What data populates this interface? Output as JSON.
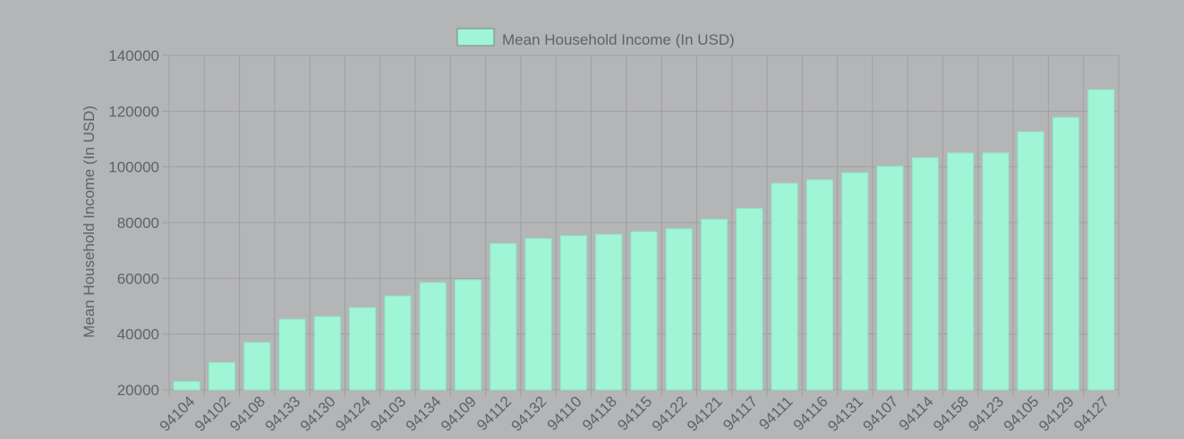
{
  "chart_data": {
    "type": "bar",
    "legend": {
      "label": "Mean Household Income (In USD)",
      "position": "top-center"
    },
    "ylabel": "Mean Household Income (In USD)",
    "xlabel": "",
    "ylim": [
      20000,
      140000
    ],
    "yticks": [
      20000,
      40000,
      60000,
      80000,
      100000,
      120000,
      140000
    ],
    "grid": true,
    "categories": [
      "94104",
      "94102",
      "94108",
      "94133",
      "94130",
      "94124",
      "94103",
      "94134",
      "94109",
      "94112",
      "94132",
      "94110",
      "94118",
      "94115",
      "94122",
      "94121",
      "94117",
      "94111",
      "94116",
      "94131",
      "94107",
      "94114",
      "94158",
      "94123",
      "94105",
      "94129",
      "94127"
    ],
    "series": [
      {
        "name": "Mean Household Income (In USD)",
        "values": [
          23000,
          29800,
          37000,
          45300,
          46300,
          49500,
          53700,
          58500,
          59500,
          72500,
          74300,
          75300,
          75800,
          76700,
          77800,
          81200,
          85100,
          94100,
          95400,
          97900,
          100200,
          103300,
          105000,
          105000,
          112600,
          117800,
          127700
        ]
      }
    ],
    "colors": {
      "bar_fill": "#9ff5d5",
      "bar_stroke": "#8ee6c4",
      "grid": "#9e9fa2",
      "text": "#5f6266",
      "background": "#b4b5b7"
    }
  }
}
